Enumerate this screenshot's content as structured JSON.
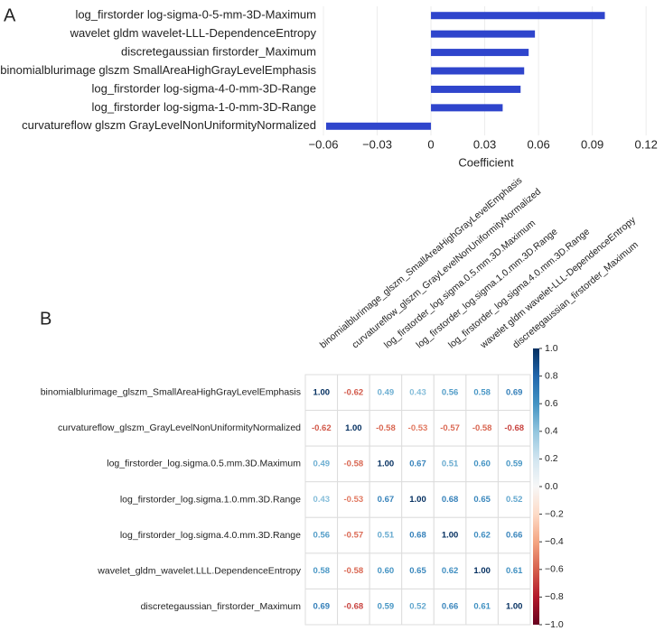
{
  "chart_data": [
    {
      "type": "bar",
      "panel_label": "A",
      "orientation": "horizontal",
      "categories": [
        "log_firstorder log-sigma-0-5-mm-3D-Maximum",
        "wavelet gldm wavelet-LLL-DependenceEntropy",
        "discretegaussian firstorder_Maximum",
        "binomialblurimage glszm SmallAreaHighGrayLevelEmphasis",
        "log_firstorder log-sigma-4-0-mm-3D-Range",
        "log_firstorder log-sigma-1-0-mm-3D-Range",
        "curvatureflow glszm GrayLevelNonUniformityNormalized"
      ],
      "values": [
        0.097,
        0.058,
        0.0545,
        0.052,
        0.05,
        0.04,
        -0.0585
      ],
      "color": "#2f45cc",
      "x_label": "Coefficient",
      "xlim": [
        -0.0605,
        0.13
      ],
      "xticks": [
        {
          "value": -0.06,
          "label": "−0.06"
        },
        {
          "value": -0.03,
          "label": "−0.03"
        },
        0,
        0.03,
        0.06,
        0.09,
        0.12
      ],
      "grid": true
    },
    {
      "type": "heatmap",
      "panel_label": "B",
      "rows": [
        "binomialblurimage_glszm_SmallAreaHighGrayLevelEmphasis",
        "curvatureflow_glszm_GrayLevelNonUniformityNormalized",
        "log_firstorder_log.sigma.0.5.mm.3D.Maximum",
        "log_firstorder_log.sigma.1.0.mm.3D.Range",
        "log_firstorder_log.sigma.4.0.mm.3D.Range",
        "wavelet_gldm_wavelet.LLL.DependenceEntropy",
        "discretegaussian_firstorder_Maximum"
      ],
      "columns": [
        "binomialblurimage_glszm_SmallAreaHighGrayLevelEmphasis",
        "curvatureflow_glszm_GrayLevelNonUniformityNormalized",
        "log_firstorder_log.sigma.0.5.mm.3D.Maximum",
        "log_firstorder_log.sigma.1.0.mm.3D.Range",
        "log_firstorder_log.sigma.4.0.mm.3D.Range",
        "wavelet gldm wavelet-LLL-DependenceEntropy",
        "discretegaussian_firstorder_Maximum"
      ],
      "values": [
        [
          1,
          -0.62,
          0.49,
          0.43,
          0.56,
          0.58,
          0.69
        ],
        [
          -0.62,
          1,
          -0.58,
          -0.53,
          -0.57,
          -0.58,
          -0.68
        ],
        [
          0.49,
          -0.58,
          1,
          0.67,
          0.51,
          0.6,
          0.59
        ],
        [
          0.43,
          -0.53,
          0.67,
          1,
          0.68,
          0.65,
          0.52
        ],
        [
          0.56,
          -0.57,
          0.51,
          0.68,
          1,
          0.62,
          0.66
        ],
        [
          0.58,
          -0.58,
          0.6,
          0.65,
          0.62,
          1,
          0.61
        ],
        [
          0.69,
          -0.68,
          0.59,
          0.52,
          0.66,
          0.61,
          1
        ]
      ],
      "value_labels": [
        [
          "1.00",
          "-0.62",
          "0.49",
          "0.43",
          "0.56",
          "0.58",
          "0.69"
        ],
        [
          "-0.62",
          "1.00",
          "-0.58",
          "-0.53",
          "-0.57",
          "-0.58",
          "-0.68"
        ],
        [
          "0.49",
          "-0.58",
          "1.00",
          "0.67",
          "0.51",
          "0.60",
          "0.59"
        ],
        [
          "0.43",
          "-0.53",
          "0.67",
          "1.00",
          "0.68",
          "0.65",
          "0.52"
        ],
        [
          "0.56",
          "-0.57",
          "0.51",
          "0.68",
          "1.00",
          "0.62",
          "0.66"
        ],
        [
          "0.58",
          "-0.58",
          "0.60",
          "0.65",
          "0.62",
          "1.00",
          "0.61"
        ],
        [
          "0.69",
          "-0.68",
          "0.59",
          "0.52",
          "0.66",
          "0.61",
          "1.00"
        ]
      ],
      "colorscale": [
        "#67001f",
        "#b2182b",
        "#d6604d",
        "#f4a582",
        "#fddbc7",
        "#f7f7f7",
        "#d1e5f0",
        "#92c5de",
        "#4393c3",
        "#2166ac",
        "#053061"
      ],
      "clim": [
        -1,
        1
      ],
      "cticks": [
        {
          "value": 1,
          "label": "1.0"
        },
        0.8,
        0.6,
        0.4,
        0.2,
        {
          "value": 0,
          "label": "0.0"
        },
        {
          "value": -0.2,
          "label": "−0.2"
        },
        {
          "value": -0.4,
          "label": "−0.4"
        },
        {
          "value": -0.6,
          "label": "−0.6"
        },
        {
          "value": -0.8,
          "label": "−0.8"
        },
        {
          "value": -1,
          "label": "−1.0"
        }
      ]
    }
  ]
}
